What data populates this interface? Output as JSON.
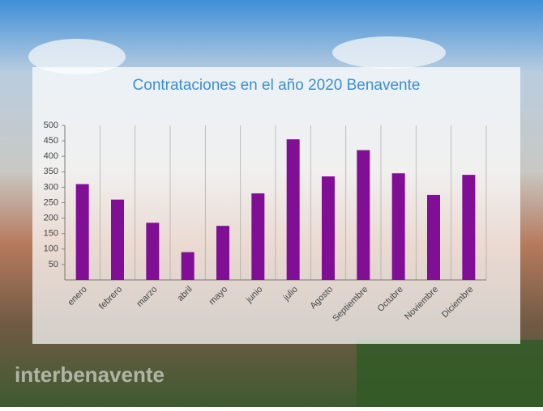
{
  "chart_data": {
    "type": "bar",
    "title": "Contrataciones en el año 2020 Benavente",
    "categories": [
      "enero",
      "febrero",
      "marzo",
      "abril",
      "mayo",
      "junio",
      "julio",
      "Agosto",
      "Septiembre",
      "Octubre",
      "Noviembre",
      "Diciembre"
    ],
    "values": [
      310,
      260,
      185,
      90,
      175,
      280,
      455,
      335,
      420,
      345,
      275,
      340
    ],
    "color": "#800f96",
    "ylim": [
      0,
      500
    ],
    "yticks": [
      50,
      100,
      150,
      200,
      250,
      300,
      350,
      400,
      450,
      500
    ],
    "grid": true
  },
  "watermark": "interbenavente"
}
